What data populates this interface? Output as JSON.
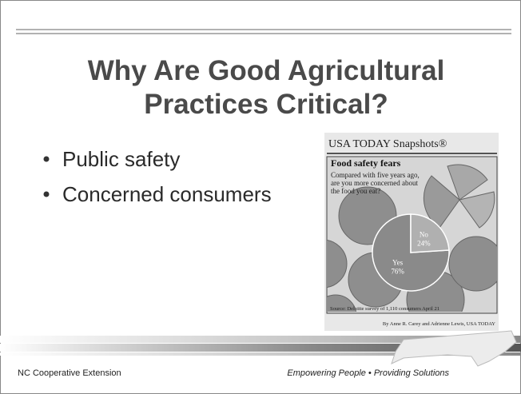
{
  "header": {
    "title_lines": [
      "Why Are Good Agricultural",
      "Practices Critical?"
    ]
  },
  "bullets": [
    "Public safety",
    "Concerned consumers"
  ],
  "snapshot": {
    "masthead": "USA TODAY Snapshots®",
    "headline": "Food safety fears",
    "question_lines": [
      "Compared with five years ago,",
      "are you more concerned about",
      "the food you eat?"
    ],
    "slices": [
      {
        "label": "Yes",
        "value": 76,
        "value_label": "76%"
      },
      {
        "label": "No",
        "value": 24,
        "value_label": "24%"
      }
    ],
    "source": "Source: Deloitte survey of 1,110 consumers April 21",
    "credit": "By Anne R. Carey and Adrienne Lewis, USA TODAY"
  },
  "footer": {
    "left": "NC Cooperative Extension",
    "right": "Empowering People • Providing Solutions"
  }
}
